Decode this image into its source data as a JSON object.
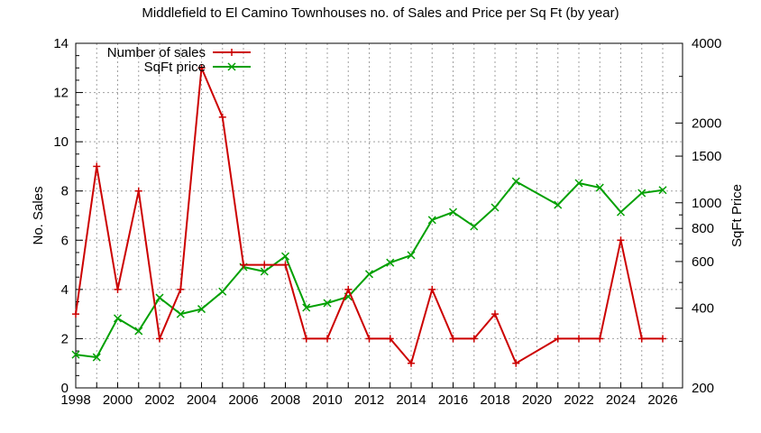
{
  "chart_data": {
    "type": "line",
    "title": "Middlefield to El Camino Townhouses no. of Sales and Price per Sq Ft (by year)",
    "xlabel": "",
    "ylabel": "No. Sales",
    "y2label": "SqFt Price",
    "xlim": [
      1998,
      2027
    ],
    "ylim": [
      0,
      14
    ],
    "y2lim": [
      200,
      4000
    ],
    "y2scale": "log",
    "grid": true,
    "legend_position": "top-left (inside)",
    "x_ticks": [
      1998,
      2000,
      2002,
      2004,
      2006,
      2008,
      2010,
      2012,
      2014,
      2016,
      2018,
      2020,
      2022,
      2024,
      2026
    ],
    "y_ticks": [
      0,
      2,
      4,
      6,
      8,
      10,
      12,
      14
    ],
    "y2_ticks": [
      200,
      400,
      600,
      800,
      1000,
      1500,
      2000,
      4000
    ],
    "series": [
      {
        "name": "Number of sales",
        "axis": "y",
        "color": "#cc0000",
        "marker": "plus",
        "x": [
          1998,
          1999,
          2000,
          2001,
          2002,
          2003,
          2004,
          2005,
          2006,
          2007,
          2008,
          2009,
          2010,
          2011,
          2012,
          2013,
          2014,
          2015,
          2016,
          2017,
          2018,
          2019,
          2021,
          2022,
          2023,
          2024,
          2025,
          2026
        ],
        "values": [
          3,
          9,
          4,
          8,
          2,
          4,
          13,
          11,
          5,
          5,
          5,
          2,
          2,
          4,
          2,
          2,
          1,
          4,
          2,
          2,
          3,
          1,
          2,
          2,
          2,
          6,
          2,
          2
        ]
      },
      {
        "name": "SqFt price",
        "axis": "y2",
        "color": "#00a000",
        "marker": "cross",
        "x": [
          1998,
          1999,
          2000,
          2001,
          2002,
          2003,
          2004,
          2005,
          2006,
          2007,
          2008,
          2009,
          2010,
          2011,
          2012,
          2013,
          2014,
          2015,
          2016,
          2017,
          2018,
          2019,
          2021,
          2022,
          2023,
          2024,
          2025,
          2026
        ],
        "values": [
          267,
          261,
          366,
          328,
          438,
          380,
          397,
          462,
          572,
          550,
          628,
          402,
          418,
          442,
          538,
          594,
          634,
          861,
          922,
          814,
          960,
          1204,
          982,
          1186,
          1140,
          922,
          1088,
          1116
        ]
      }
    ]
  }
}
